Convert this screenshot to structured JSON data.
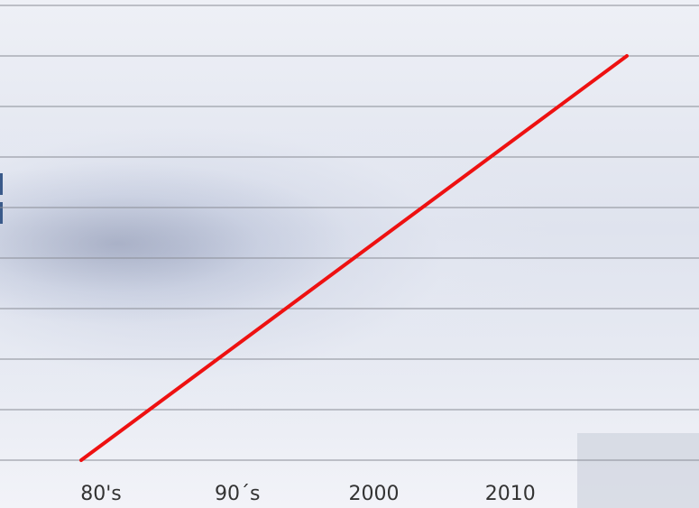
{
  "chart_data": {
    "type": "line",
    "categories": [
      "80's",
      "90´s",
      "2000",
      "2010",
      null
    ],
    "series": [
      {
        "color": "#ee1111",
        "values": [
          0,
          2,
          4,
          6,
          8
        ]
      }
    ],
    "ylim": [
      0,
      9
    ],
    "yticks": [
      0,
      1,
      2,
      3,
      4,
      5,
      6,
      7,
      8,
      9
    ],
    "grid": true
  }
}
